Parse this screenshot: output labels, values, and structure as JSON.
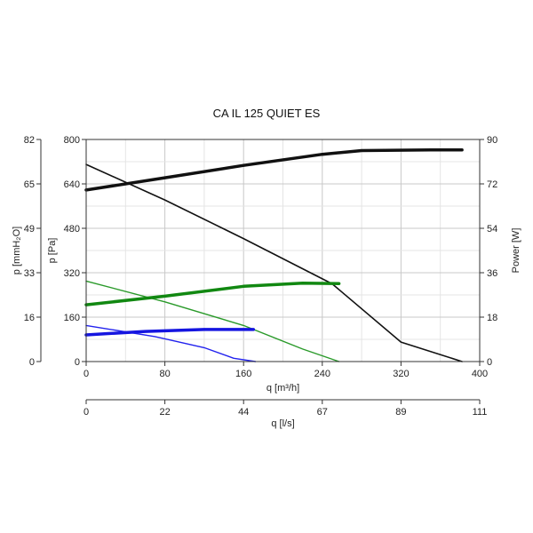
{
  "chart_data": {
    "type": "line",
    "title": "CA IL 125 QUIET ES",
    "axes": {
      "x_bottom": {
        "label": "q [m³/h]",
        "range": [
          0,
          400
        ],
        "ticks": [
          "0",
          "80",
          "160",
          "240",
          "320",
          "400"
        ]
      },
      "x_secondary": {
        "label": "q [l/s]",
        "range": [
          0,
          111
        ],
        "ticks": [
          "0",
          "22",
          "44",
          "67",
          "89",
          "111"
        ]
      },
      "y_left_pa": {
        "label": "p [Pa]",
        "range": [
          0,
          800
        ],
        "ticks": [
          "0",
          "160",
          "320",
          "480",
          "640",
          "800"
        ]
      },
      "y_left_mmh2o": {
        "label": "p [mmH₂O]",
        "range": [
          0,
          82
        ],
        "ticks": [
          "0",
          "16",
          "33",
          "49",
          "65",
          "82"
        ]
      },
      "y_right_power": {
        "label": "Power [W]",
        "range": [
          0,
          90
        ],
        "ticks": [
          "0",
          "18",
          "36",
          "54",
          "72",
          "90"
        ]
      }
    },
    "grid": true,
    "series": [
      {
        "kind": "pressure",
        "axis": "pa",
        "color": "#111111",
        "width": 1.6,
        "points": [
          [
            0,
            710
          ],
          [
            80,
            582
          ],
          [
            160,
            443
          ],
          [
            250,
            280
          ],
          [
            320,
            70
          ],
          [
            382,
            0
          ]
        ]
      },
      {
        "kind": "power",
        "axis": "w",
        "color": "#111111",
        "width": 3.5,
        "points": [
          [
            0,
            69.5
          ],
          [
            80,
            74.5
          ],
          [
            160,
            79.5
          ],
          [
            240,
            84
          ],
          [
            280,
            85.5
          ],
          [
            350,
            85.8
          ],
          [
            382,
            85.8
          ]
        ]
      },
      {
        "kind": "pressure",
        "axis": "pa",
        "color": "#2a9a2a",
        "width": 1.4,
        "points": [
          [
            0,
            290
          ],
          [
            80,
            215
          ],
          [
            160,
            130
          ],
          [
            220,
            45
          ],
          [
            257,
            0
          ]
        ]
      },
      {
        "kind": "power",
        "axis": "w",
        "color": "#118811",
        "width": 3.5,
        "points": [
          [
            0,
            23
          ],
          [
            80,
            26.5
          ],
          [
            160,
            30.5
          ],
          [
            220,
            31.8
          ],
          [
            257,
            31.6
          ]
        ]
      },
      {
        "kind": "pressure",
        "axis": "pa",
        "color": "#2222ee",
        "width": 1.4,
        "points": [
          [
            0,
            130
          ],
          [
            70,
            90
          ],
          [
            120,
            50
          ],
          [
            150,
            12
          ],
          [
            172,
            0
          ]
        ]
      },
      {
        "kind": "power",
        "axis": "w",
        "color": "#1515e0",
        "width": 3.5,
        "points": [
          [
            0,
            10.8
          ],
          [
            60,
            12.2
          ],
          [
            120,
            13
          ],
          [
            170,
            13
          ]
        ]
      }
    ]
  }
}
